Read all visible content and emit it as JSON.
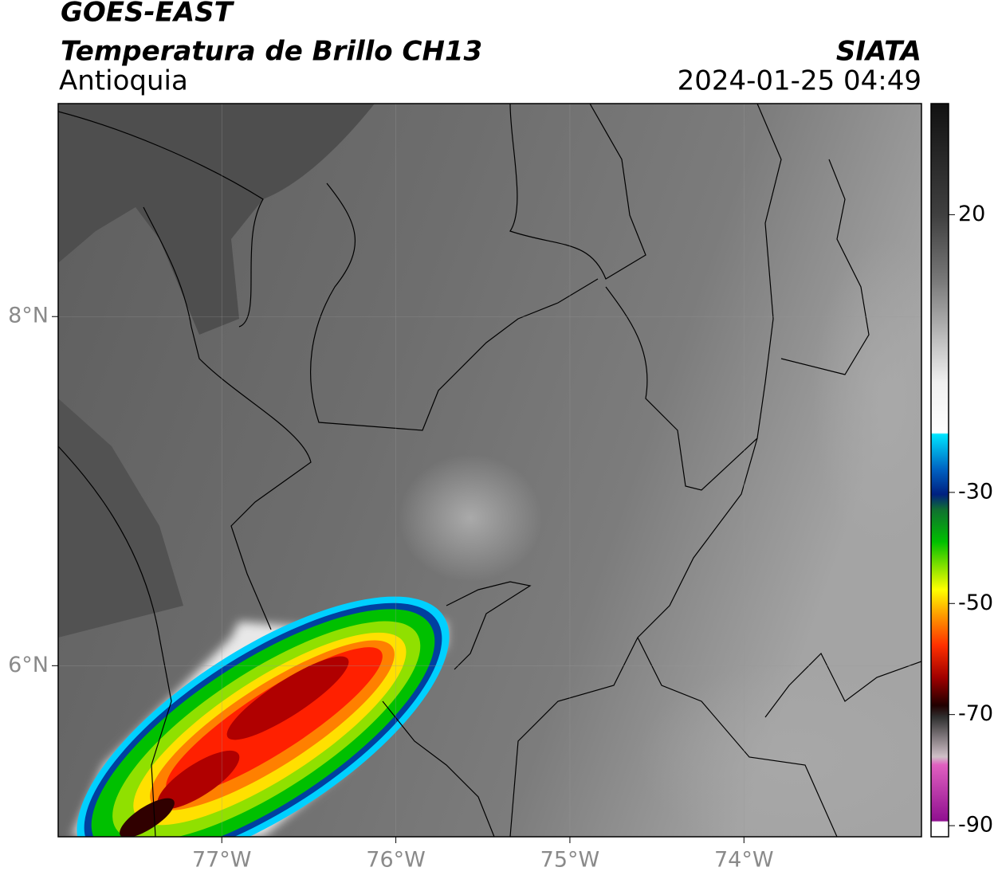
{
  "header": {
    "satellite": "GOES-EAST",
    "product": "Temperatura de Brillo CH13",
    "region": "Antioquia",
    "agency": "SIATA",
    "timestamp": "2024-01-25 04:49"
  },
  "map": {
    "xlim": [
      -77.94,
      -72.98
    ],
    "ylim": [
      5.02,
      9.22
    ],
    "xticks": [
      {
        "value": -77,
        "label": "77°W"
      },
      {
        "value": -76,
        "label": "76°W"
      },
      {
        "value": -75,
        "label": "75°W"
      },
      {
        "value": -74,
        "label": "74°W"
      }
    ],
    "yticks": [
      {
        "value": 8,
        "label": "8°N"
      },
      {
        "value": 6,
        "label": "6°N"
      }
    ]
  },
  "colorbar": {
    "lim": [
      -92,
      40
    ],
    "ticks": [
      20,
      -30,
      -50,
      -70,
      -90
    ]
  }
}
